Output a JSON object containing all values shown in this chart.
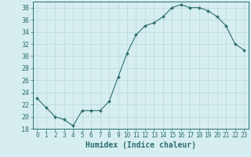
{
  "x": [
    0,
    1,
    2,
    3,
    4,
    5,
    6,
    7,
    8,
    9,
    10,
    11,
    12,
    13,
    14,
    15,
    16,
    17,
    18,
    19,
    20,
    21,
    22,
    23
  ],
  "y": [
    23.0,
    21.5,
    20.0,
    19.5,
    18.5,
    21.0,
    21.0,
    21.0,
    22.5,
    26.5,
    30.5,
    33.5,
    35.0,
    35.5,
    36.5,
    38.0,
    38.5,
    38.0,
    38.0,
    37.5,
    36.5,
    35.0,
    32.0,
    31.0
  ],
  "line_color": "#2d6e6e",
  "marker": "D",
  "marker_size": 2.0,
  "bg_color": "#d6eef0",
  "grid_color": "#b8d8da",
  "xlabel": "Humidex (Indice chaleur)",
  "ylim": [
    18,
    39
  ],
  "xlim": [
    -0.5,
    23.5
  ],
  "yticks": [
    18,
    20,
    22,
    24,
    26,
    28,
    30,
    32,
    34,
    36,
    38
  ],
  "xticks": [
    0,
    1,
    2,
    3,
    4,
    5,
    6,
    7,
    8,
    9,
    10,
    11,
    12,
    13,
    14,
    15,
    16,
    17,
    18,
    19,
    20,
    21,
    22,
    23
  ],
  "tick_color": "#2d6e6e",
  "xlabel_fontsize": 7,
  "ytick_fontsize": 6,
  "xtick_fontsize": 5.5
}
